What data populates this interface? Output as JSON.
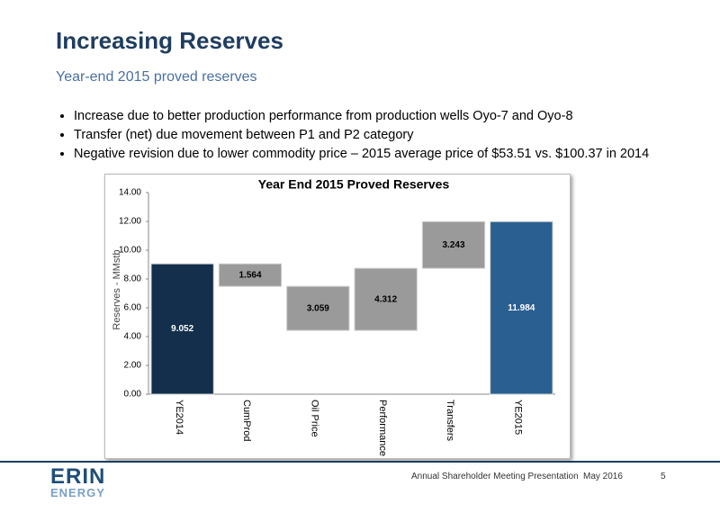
{
  "title": "Increasing Reserves",
  "subtitle": "Year-end 2015 proved reserves",
  "bullets": [
    "Increase due to better production performance from production wells Oyo-7 and Oyo-8",
    "Transfer (net) due movement between P1 and P2 category",
    "Negative revision due to lower commodity price – 2015 average price of $53.51 vs. $100.37 in 2014"
  ],
  "chart_data": {
    "type": "waterfall",
    "title": "Year End 2015 Proved Reserves",
    "y_label": "Reserves - MMstb",
    "categories": [
      "YE2014",
      "CumProd",
      "Oil Price",
      "Performance",
      "Transfers",
      "YE2015"
    ],
    "values": [
      9.052,
      -1.564,
      -3.059,
      4.312,
      3.243,
      11.984
    ],
    "value_labels": [
      "9.052",
      "1.564",
      "3.059",
      "4.312",
      "3.243",
      "11.984"
    ],
    "totals": [
      true,
      false,
      false,
      false,
      false,
      true
    ],
    "colors": [
      "#132f4c",
      "#9a9a9a",
      "#9a9a9a",
      "#9a9a9a",
      "#9a9a9a",
      "#2a5f92"
    ],
    "ylim": [
      0,
      14
    ],
    "yticks": [
      {
        "value": 0,
        "label": "0.00"
      },
      {
        "value": 2,
        "label": "2.00"
      },
      {
        "value": 4,
        "label": "4.00"
      },
      {
        "value": 6,
        "label": "6.00"
      },
      {
        "value": 8,
        "label": "8.00"
      },
      {
        "value": 10,
        "label": "10.00"
      },
      {
        "value": 12,
        "label": "12.00"
      },
      {
        "value": 14,
        "label": "14.00"
      }
    ]
  },
  "footer": {
    "logo_top": "ERIN",
    "logo_bottom": "ENERGY",
    "presentation": "Annual Shareholder Meeting Presentation",
    "date": "May 2016",
    "page": "5"
  }
}
